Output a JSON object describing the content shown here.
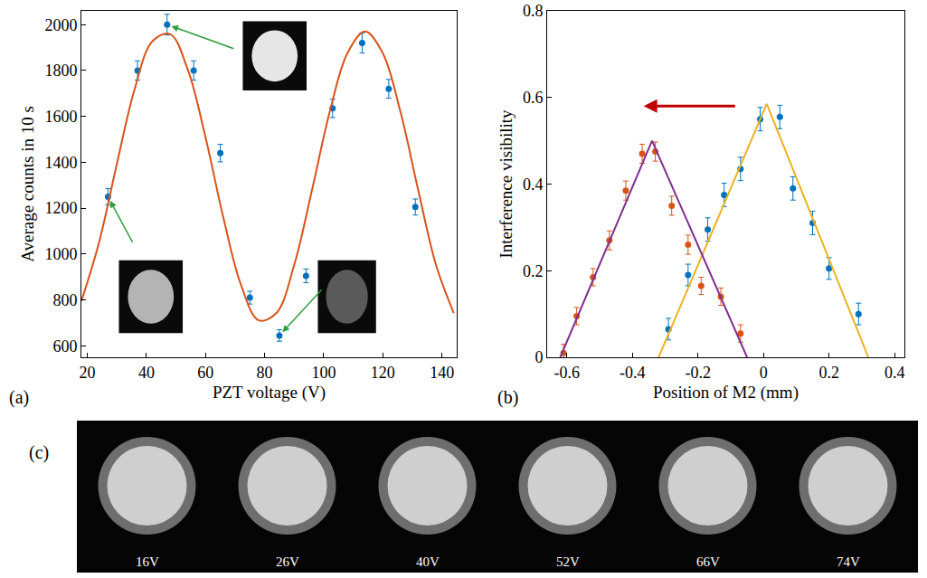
{
  "chart_data": [
    {
      "type": "scatter",
      "annotations": [
        "(a)"
      ],
      "x_label": "PZT voltage (V)",
      "y_label": "Average counts in 10 s",
      "xlim": [
        18,
        145
      ],
      "ylim": [
        550,
        2060
      ],
      "xticks": [
        20,
        40,
        60,
        80,
        100,
        120,
        140
      ],
      "yticks": [
        600,
        800,
        1000,
        1200,
        1400,
        1600,
        1800,
        2000
      ],
      "grid": false,
      "series": [
        {
          "type": "scatter",
          "color": "#0072BD",
          "marker": "circle",
          "x": [
            27,
            37,
            47,
            56,
            65,
            75,
            85,
            94,
            103,
            113,
            122,
            131
          ],
          "values": [
            1250,
            1800,
            2000,
            1800,
            1440,
            810,
            645,
            905,
            1635,
            1920,
            1720,
            1205
          ],
          "errors": [
            35,
            42,
            45,
            42,
            38,
            28,
            25,
            30,
            40,
            44,
            41,
            35
          ]
        },
        {
          "type": "line",
          "color": "#D95319",
          "line_style": "smooth",
          "x": [
            18,
            24,
            30,
            36,
            42,
            48,
            54,
            60,
            66,
            72,
            78,
            84,
            90,
            96,
            102,
            108,
            114,
            120,
            126,
            132,
            138,
            144
          ],
          "values": [
            795,
            1052,
            1393,
            1718,
            1927,
            1959,
            1804,
            1509,
            1161,
            866,
            711,
            743,
            952,
            1277,
            1618,
            1875,
            1970,
            1875,
            1618,
            1277,
            952,
            743
          ]
        }
      ]
    },
    {
      "type": "scatter",
      "annotations": [
        "(b)"
      ],
      "x_label": "Position of M2 (mm)",
      "y_label": "Interference visibility",
      "xlim": [
        -0.66,
        0.43
      ],
      "ylim": [
        0,
        0.8
      ],
      "xticks": [
        -0.6,
        -0.4,
        -0.2,
        0,
        0.2,
        0.4
      ],
      "yticks": [
        0,
        0.2,
        0.4,
        0.6,
        0.8
      ],
      "grid": false,
      "series": [
        {
          "type": "scatter",
          "color": "#0072BD",
          "marker": "circle",
          "x": [
            -0.29,
            -0.23,
            -0.17,
            -0.12,
            -0.07,
            -0.01,
            0.05,
            0.09,
            0.15,
            0.2,
            0.29
          ],
          "values": [
            0.065,
            0.19,
            0.295,
            0.375,
            0.435,
            0.55,
            0.555,
            0.39,
            0.31,
            0.205,
            0.1
          ],
          "errors": [
            0.025,
            0.025,
            0.027,
            0.027,
            0.027,
            0.027,
            0.027,
            0.027,
            0.027,
            0.025,
            0.025
          ]
        },
        {
          "type": "scatter",
          "color": "#D95319",
          "marker": "circle",
          "x": [
            -0.61,
            -0.57,
            -0.52,
            -0.47,
            -0.42,
            -0.37,
            -0.33,
            -0.28,
            -0.23,
            -0.19,
            -0.13,
            -0.07
          ],
          "values": [
            0.01,
            0.095,
            0.185,
            0.27,
            0.385,
            0.47,
            0.475,
            0.35,
            0.26,
            0.165,
            0.14,
            0.055
          ],
          "errors": [
            0.02,
            0.02,
            0.02,
            0.022,
            0.022,
            0.022,
            0.022,
            0.022,
            0.022,
            0.02,
            0.02,
            0.02
          ]
        },
        {
          "type": "line",
          "color": "#EDB120",
          "line_style": "solid",
          "x": [
            -0.32,
            0.01,
            0.32
          ],
          "values": [
            0,
            0.585,
            0
          ]
        },
        {
          "type": "line",
          "color": "#7E2F8E",
          "line_style": "solid",
          "x": [
            -0.62,
            -0.34,
            -0.05
          ],
          "values": [
            0,
            0.5,
            0
          ]
        }
      ]
    }
  ],
  "panel_c": {
    "label": "(c)",
    "captions": [
      "16V",
      "26V",
      "40V",
      "52V",
      "66V",
      "74V"
    ]
  }
}
